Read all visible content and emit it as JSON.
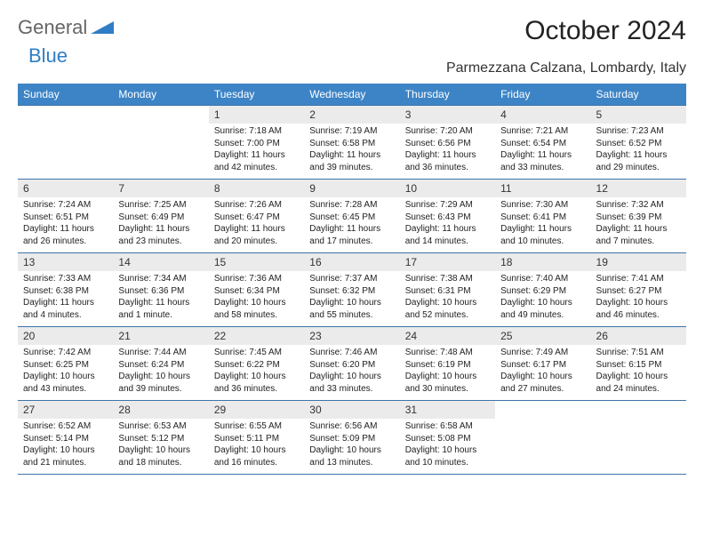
{
  "logo": {
    "part1": "General",
    "part2": "Blue"
  },
  "title": "October 2024",
  "location": "Parmezzana Calzana, Lombardy, Italy",
  "colors": {
    "header_bg": "#3d84c6",
    "header_text": "#ffffff",
    "rule": "#3d74a8",
    "daynum_bg": "#ebebeb",
    "logo_blue": "#2f7ec5",
    "logo_grey": "#666666",
    "body_bg": "#ffffff"
  },
  "typography": {
    "title_fontsize": 30,
    "location_fontsize": 16,
    "weekday_fontsize": 12,
    "daynum_fontsize": 12,
    "cell_fontsize": 10
  },
  "weekdays": [
    "Sunday",
    "Monday",
    "Tuesday",
    "Wednesday",
    "Thursday",
    "Friday",
    "Saturday"
  ],
  "weeks": [
    [
      null,
      null,
      {
        "n": "1",
        "sr": "Sunrise: 7:18 AM",
        "ss": "Sunset: 7:00 PM",
        "dl": "Daylight: 11 hours and 42 minutes."
      },
      {
        "n": "2",
        "sr": "Sunrise: 7:19 AM",
        "ss": "Sunset: 6:58 PM",
        "dl": "Daylight: 11 hours and 39 minutes."
      },
      {
        "n": "3",
        "sr": "Sunrise: 7:20 AM",
        "ss": "Sunset: 6:56 PM",
        "dl": "Daylight: 11 hours and 36 minutes."
      },
      {
        "n": "4",
        "sr": "Sunrise: 7:21 AM",
        "ss": "Sunset: 6:54 PM",
        "dl": "Daylight: 11 hours and 33 minutes."
      },
      {
        "n": "5",
        "sr": "Sunrise: 7:23 AM",
        "ss": "Sunset: 6:52 PM",
        "dl": "Daylight: 11 hours and 29 minutes."
      }
    ],
    [
      {
        "n": "6",
        "sr": "Sunrise: 7:24 AM",
        "ss": "Sunset: 6:51 PM",
        "dl": "Daylight: 11 hours and 26 minutes."
      },
      {
        "n": "7",
        "sr": "Sunrise: 7:25 AM",
        "ss": "Sunset: 6:49 PM",
        "dl": "Daylight: 11 hours and 23 minutes."
      },
      {
        "n": "8",
        "sr": "Sunrise: 7:26 AM",
        "ss": "Sunset: 6:47 PM",
        "dl": "Daylight: 11 hours and 20 minutes."
      },
      {
        "n": "9",
        "sr": "Sunrise: 7:28 AM",
        "ss": "Sunset: 6:45 PM",
        "dl": "Daylight: 11 hours and 17 minutes."
      },
      {
        "n": "10",
        "sr": "Sunrise: 7:29 AM",
        "ss": "Sunset: 6:43 PM",
        "dl": "Daylight: 11 hours and 14 minutes."
      },
      {
        "n": "11",
        "sr": "Sunrise: 7:30 AM",
        "ss": "Sunset: 6:41 PM",
        "dl": "Daylight: 11 hours and 10 minutes."
      },
      {
        "n": "12",
        "sr": "Sunrise: 7:32 AM",
        "ss": "Sunset: 6:39 PM",
        "dl": "Daylight: 11 hours and 7 minutes."
      }
    ],
    [
      {
        "n": "13",
        "sr": "Sunrise: 7:33 AM",
        "ss": "Sunset: 6:38 PM",
        "dl": "Daylight: 11 hours and 4 minutes."
      },
      {
        "n": "14",
        "sr": "Sunrise: 7:34 AM",
        "ss": "Sunset: 6:36 PM",
        "dl": "Daylight: 11 hours and 1 minute."
      },
      {
        "n": "15",
        "sr": "Sunrise: 7:36 AM",
        "ss": "Sunset: 6:34 PM",
        "dl": "Daylight: 10 hours and 58 minutes."
      },
      {
        "n": "16",
        "sr": "Sunrise: 7:37 AM",
        "ss": "Sunset: 6:32 PM",
        "dl": "Daylight: 10 hours and 55 minutes."
      },
      {
        "n": "17",
        "sr": "Sunrise: 7:38 AM",
        "ss": "Sunset: 6:31 PM",
        "dl": "Daylight: 10 hours and 52 minutes."
      },
      {
        "n": "18",
        "sr": "Sunrise: 7:40 AM",
        "ss": "Sunset: 6:29 PM",
        "dl": "Daylight: 10 hours and 49 minutes."
      },
      {
        "n": "19",
        "sr": "Sunrise: 7:41 AM",
        "ss": "Sunset: 6:27 PM",
        "dl": "Daylight: 10 hours and 46 minutes."
      }
    ],
    [
      {
        "n": "20",
        "sr": "Sunrise: 7:42 AM",
        "ss": "Sunset: 6:25 PM",
        "dl": "Daylight: 10 hours and 43 minutes."
      },
      {
        "n": "21",
        "sr": "Sunrise: 7:44 AM",
        "ss": "Sunset: 6:24 PM",
        "dl": "Daylight: 10 hours and 39 minutes."
      },
      {
        "n": "22",
        "sr": "Sunrise: 7:45 AM",
        "ss": "Sunset: 6:22 PM",
        "dl": "Daylight: 10 hours and 36 minutes."
      },
      {
        "n": "23",
        "sr": "Sunrise: 7:46 AM",
        "ss": "Sunset: 6:20 PM",
        "dl": "Daylight: 10 hours and 33 minutes."
      },
      {
        "n": "24",
        "sr": "Sunrise: 7:48 AM",
        "ss": "Sunset: 6:19 PM",
        "dl": "Daylight: 10 hours and 30 minutes."
      },
      {
        "n": "25",
        "sr": "Sunrise: 7:49 AM",
        "ss": "Sunset: 6:17 PM",
        "dl": "Daylight: 10 hours and 27 minutes."
      },
      {
        "n": "26",
        "sr": "Sunrise: 7:51 AM",
        "ss": "Sunset: 6:15 PM",
        "dl": "Daylight: 10 hours and 24 minutes."
      }
    ],
    [
      {
        "n": "27",
        "sr": "Sunrise: 6:52 AM",
        "ss": "Sunset: 5:14 PM",
        "dl": "Daylight: 10 hours and 21 minutes."
      },
      {
        "n": "28",
        "sr": "Sunrise: 6:53 AM",
        "ss": "Sunset: 5:12 PM",
        "dl": "Daylight: 10 hours and 18 minutes."
      },
      {
        "n": "29",
        "sr": "Sunrise: 6:55 AM",
        "ss": "Sunset: 5:11 PM",
        "dl": "Daylight: 10 hours and 16 minutes."
      },
      {
        "n": "30",
        "sr": "Sunrise: 6:56 AM",
        "ss": "Sunset: 5:09 PM",
        "dl": "Daylight: 10 hours and 13 minutes."
      },
      {
        "n": "31",
        "sr": "Sunrise: 6:58 AM",
        "ss": "Sunset: 5:08 PM",
        "dl": "Daylight: 10 hours and 10 minutes."
      },
      null,
      null
    ]
  ]
}
